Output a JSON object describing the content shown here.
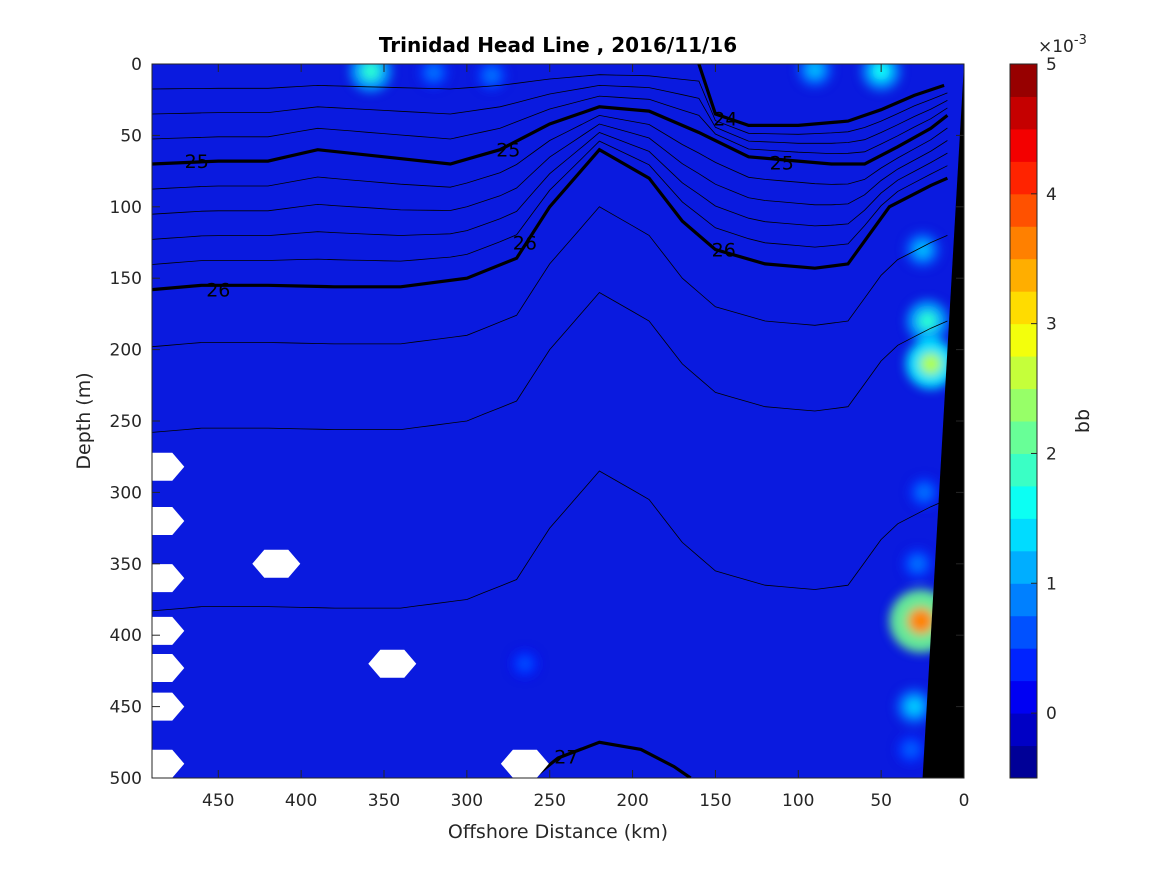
{
  "chart_data": {
    "type": "heatmap",
    "title": "Trinidad Head Line , 2016/11/16",
    "xlabel": "Offshore Distance (km)",
    "ylabel": "Depth (m)",
    "xlim": [
      490,
      0
    ],
    "ylim": [
      0,
      500
    ],
    "x_reversed": true,
    "y_reversed": true,
    "x_ticks": [
      450,
      400,
      350,
      300,
      250,
      200,
      150,
      100,
      50,
      0
    ],
    "y_ticks": [
      0,
      50,
      100,
      150,
      200,
      250,
      300,
      350,
      400,
      450,
      500
    ],
    "colorbar": {
      "label": "bb",
      "exponent_label": "×10",
      "exponent_power": "-3",
      "clim": [
        -0.5,
        5
      ],
      "ticks": [
        0,
        1,
        2,
        3,
        4,
        5
      ],
      "colormap": "jet"
    },
    "background_value": 0.2,
    "background_color": "#0a1adf",
    "high_bb_patches": [
      {
        "x": 358,
        "y": 5,
        "value": 1.8
      },
      {
        "x": 320,
        "y": 6,
        "value": 0.8
      },
      {
        "x": 285,
        "y": 8,
        "value": 0.8
      },
      {
        "x": 50,
        "y": 5,
        "value": 1.6
      },
      {
        "x": 90,
        "y": 4,
        "value": 1.2
      },
      {
        "x": 25,
        "y": 130,
        "value": 1.2
      },
      {
        "x": 22,
        "y": 180,
        "value": 1.8
      },
      {
        "x": 20,
        "y": 210,
        "value": 2.5
      },
      {
        "x": 24,
        "y": 300,
        "value": 0.8
      },
      {
        "x": 28,
        "y": 350,
        "value": 0.8
      },
      {
        "x": 26,
        "y": 390,
        "value": 3.6
      },
      {
        "x": 30,
        "y": 450,
        "value": 1.3
      },
      {
        "x": 32,
        "y": 480,
        "value": 0.7
      },
      {
        "x": 265,
        "y": 420,
        "value": 0.6
      }
    ],
    "density_contours": [
      {
        "label": "24",
        "bold": true,
        "label_positions": [
          [
            144,
            38
          ]
        ],
        "points": [
          [
            160,
            0
          ],
          [
            150,
            35
          ],
          [
            130,
            43
          ],
          [
            100,
            43
          ],
          [
            70,
            40
          ],
          [
            50,
            32
          ],
          [
            30,
            22
          ],
          [
            12,
            15
          ]
        ]
      },
      {
        "label": "25",
        "bold": true,
        "label_positions": [
          [
            463,
            68
          ],
          [
            275,
            60
          ],
          [
            110,
            69
          ]
        ],
        "points": [
          [
            490,
            70
          ],
          [
            450,
            68
          ],
          [
            420,
            68
          ],
          [
            390,
            60
          ],
          [
            350,
            65
          ],
          [
            310,
            70
          ],
          [
            280,
            60
          ],
          [
            250,
            42
          ],
          [
            220,
            30
          ],
          [
            190,
            33
          ],
          [
            160,
            48
          ],
          [
            130,
            65
          ],
          [
            100,
            68
          ],
          [
            80,
            70
          ],
          [
            60,
            70
          ],
          [
            40,
            58
          ],
          [
            20,
            45
          ],
          [
            10,
            36
          ]
        ]
      },
      {
        "label": "26",
        "bold": true,
        "label_positions": [
          [
            450,
            158
          ],
          [
            265,
            125
          ],
          [
            145,
            130
          ]
        ],
        "points": [
          [
            490,
            158
          ],
          [
            460,
            155
          ],
          [
            420,
            155
          ],
          [
            380,
            156
          ],
          [
            340,
            156
          ],
          [
            300,
            150
          ],
          [
            270,
            136
          ],
          [
            250,
            100
          ],
          [
            220,
            60
          ],
          [
            190,
            80
          ],
          [
            170,
            110
          ],
          [
            150,
            130
          ],
          [
            120,
            140
          ],
          [
            90,
            143
          ],
          [
            70,
            140
          ],
          [
            45,
            100
          ],
          [
            20,
            85
          ],
          [
            10,
            80
          ]
        ]
      },
      {
        "label": "27",
        "bold": true,
        "label_positions": [
          [
            240,
            485
          ]
        ],
        "points": [
          [
            260,
            500
          ],
          [
            245,
            486
          ],
          [
            220,
            475
          ],
          [
            195,
            480
          ],
          [
            175,
            492
          ],
          [
            165,
            500
          ]
        ]
      }
    ],
    "bathymetry": {
      "surface_x": 0,
      "bottom_x": 25,
      "depth_at_coast": 0,
      "value": "land"
    },
    "data_gaps": [
      {
        "x": 485,
        "y": 282
      },
      {
        "x": 485,
        "y": 320
      },
      {
        "x": 485,
        "y": 360
      },
      {
        "x": 485,
        "y": 397
      },
      {
        "x": 485,
        "y": 423
      },
      {
        "x": 485,
        "y": 450
      },
      {
        "x": 485,
        "y": 490
      },
      {
        "x": 415,
        "y": 350
      },
      {
        "x": 345,
        "y": 420
      },
      {
        "x": 265,
        "y": 490
      }
    ]
  }
}
